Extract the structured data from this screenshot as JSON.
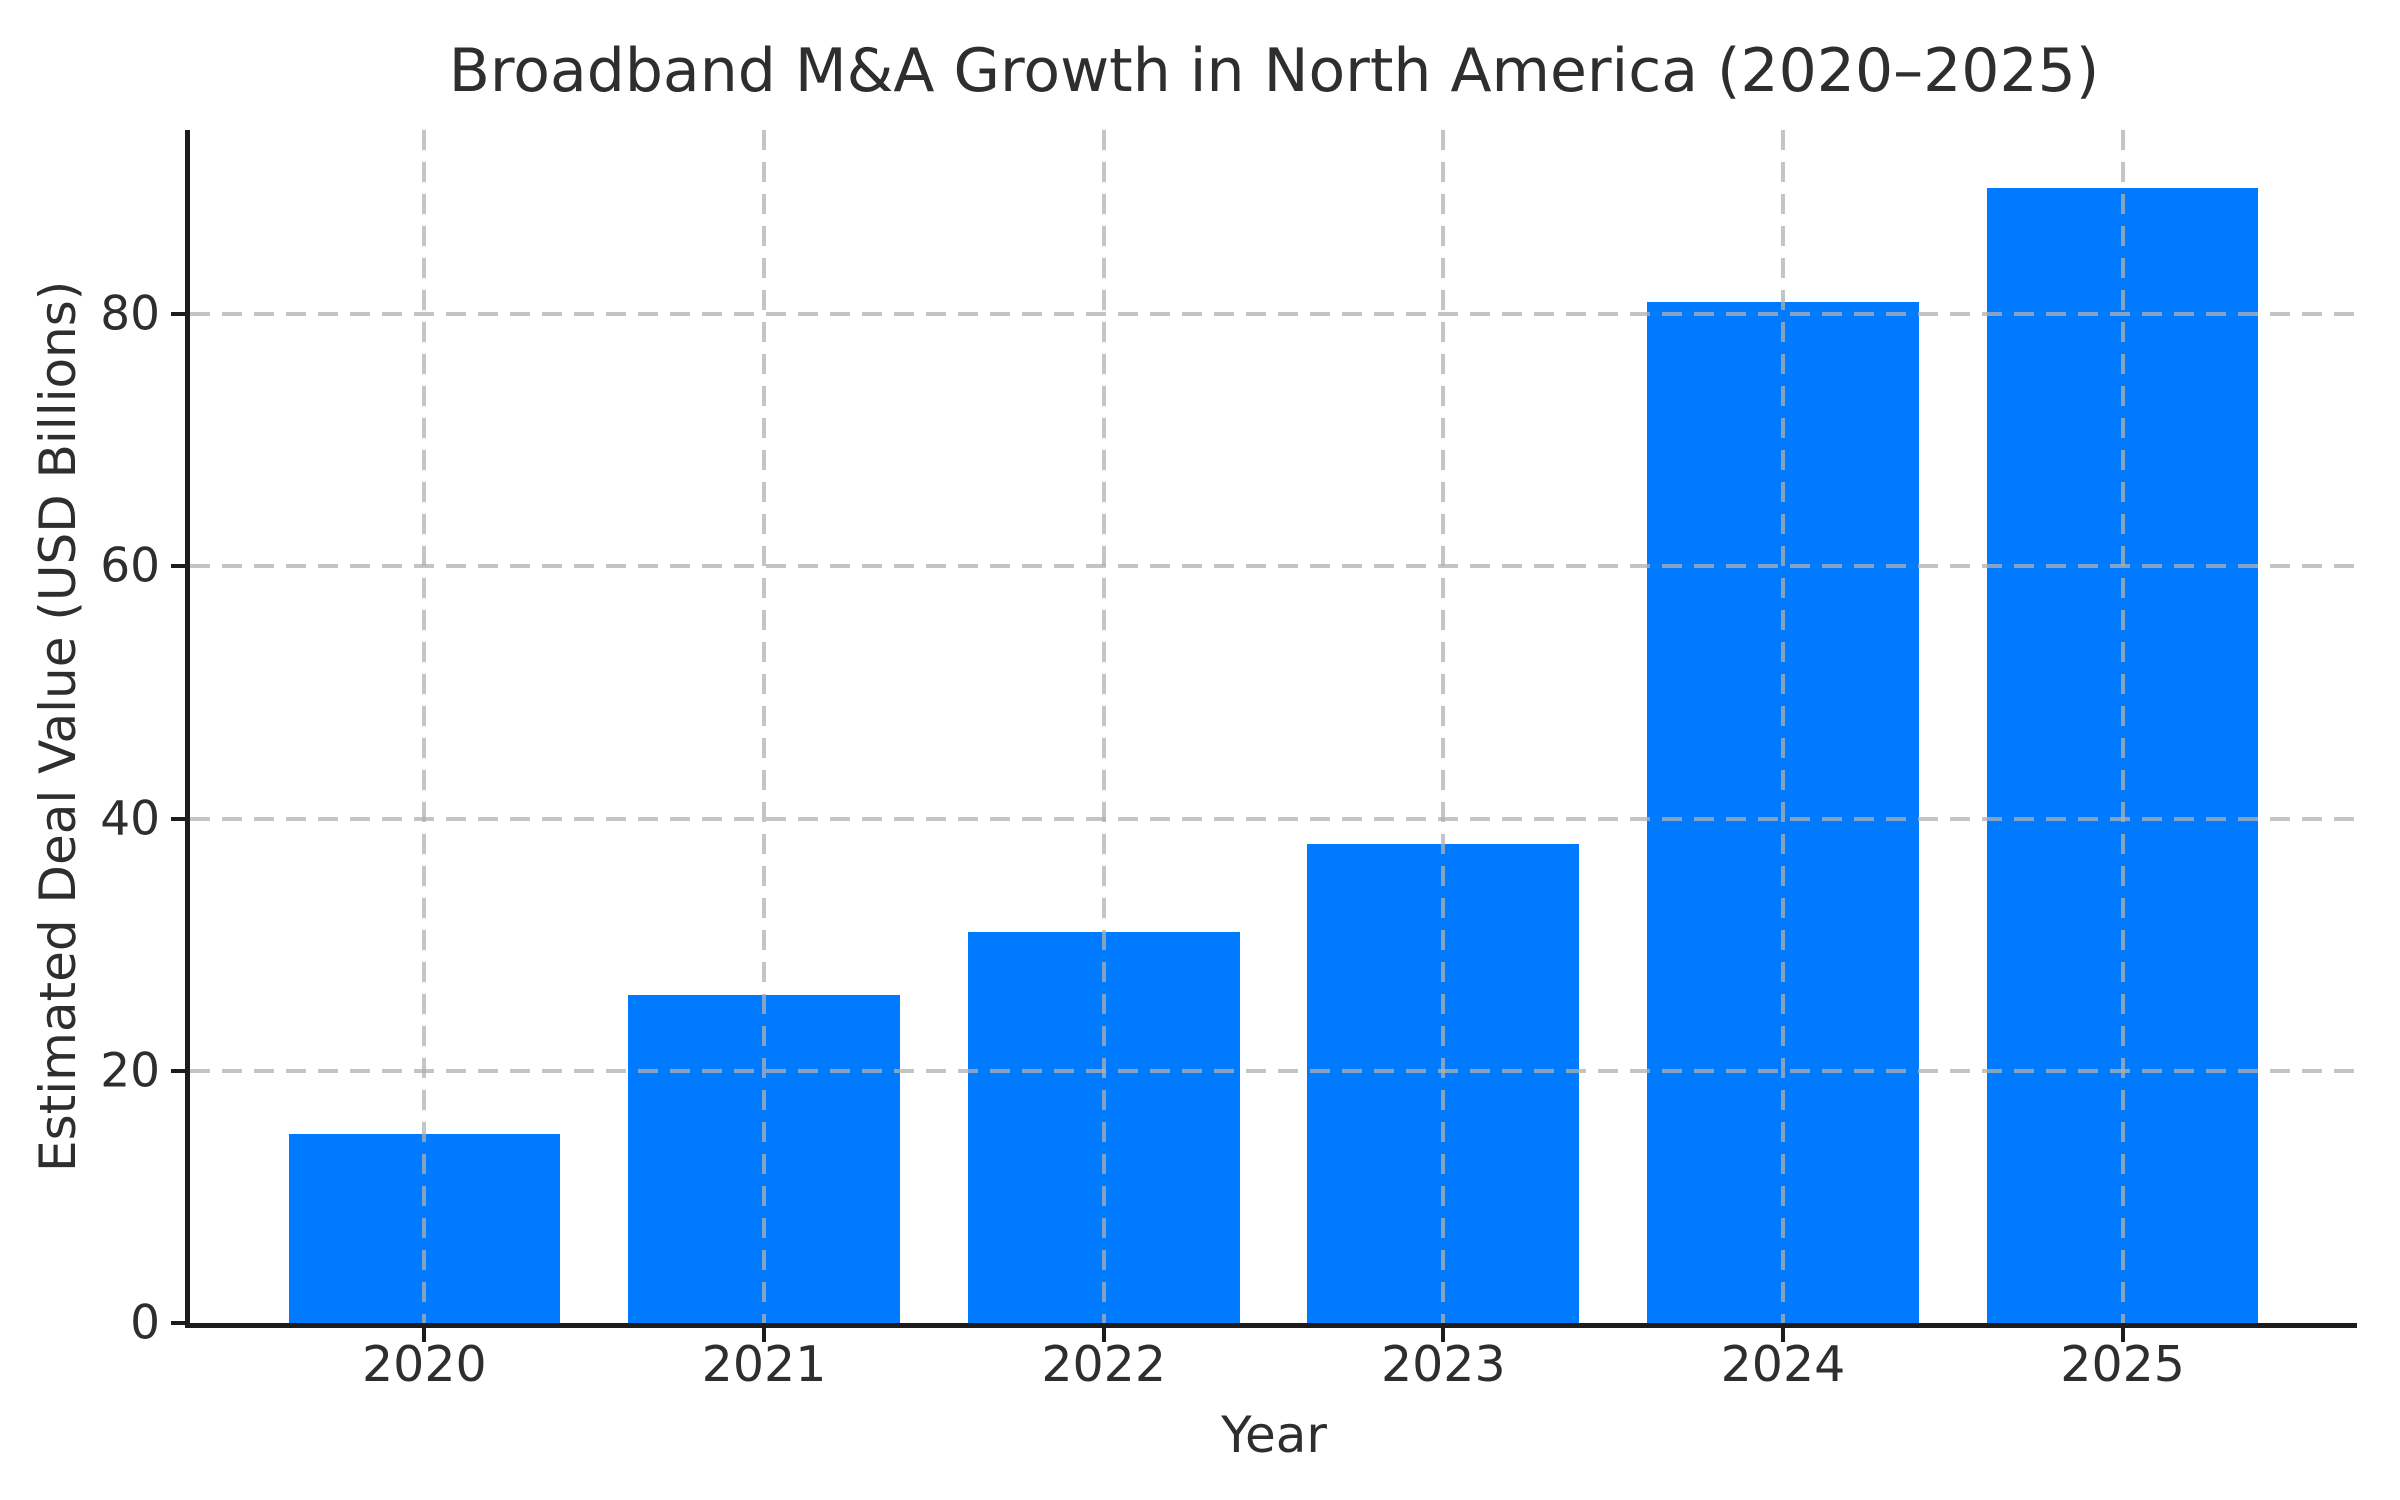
{
  "chart_data": {
    "type": "bar",
    "title": "Broadband M&A Growth in North America (2020–2025)",
    "xlabel": "Year",
    "ylabel": "Estimated Deal Value (USD Billions)",
    "categories": [
      "2020",
      "2021",
      "2022",
      "2023",
      "2024",
      "2025"
    ],
    "values": [
      15,
      26,
      31,
      38,
      81,
      90
    ],
    "yticks": [
      0,
      20,
      40,
      60,
      80
    ],
    "ylim": [
      0,
      94.6
    ],
    "x_edge_pad": 0.69,
    "bar_width_units": 0.8,
    "grid": true,
    "grid_style": "dashed",
    "legend": "none",
    "bar_color": "#007BFF",
    "grid_color_rgba": "rgba(176,176,176,0.75)",
    "axis_color": "#1c1c1c",
    "text_color": "#2e2e2e",
    "background_color": "#ffffff"
  }
}
